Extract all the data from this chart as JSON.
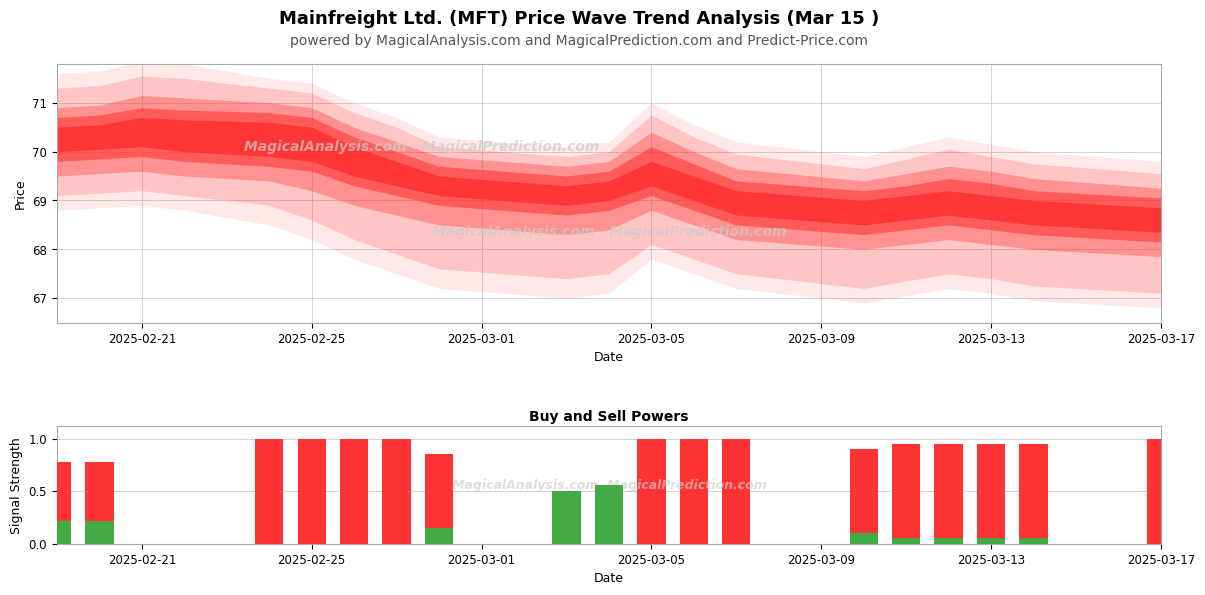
{
  "title": "Mainfreight Ltd. (MFT) Price Wave Trend Analysis (Mar 15 )",
  "subtitle": "powered by MagicalAnalysis.com and MagicalPrediction.com and Predict-Price.com",
  "title_fontsize": 13,
  "subtitle_fontsize": 10,
  "watermark1": "MagicalAnalysis.com - MagicalPrediction.com",
  "watermark2": "MagicalAnalysis.com   MagicalPrediction.com",
  "watermark3": "MagicalAnalysis.com  MagicalPrediction.com",
  "xlabel": "Date",
  "ylabel_top": "Price",
  "ylabel_bottom": "Signal Strength",
  "bottom_title": "Buy and Sell Powers",
  "price_ylim": [
    66.5,
    71.8
  ],
  "price_yticks": [
    67,
    68,
    69,
    70,
    71
  ],
  "bar_yticks": [
    0.0,
    0.5,
    1.0
  ],
  "background_color": "#ffffff",
  "sell_color": "#ff3333",
  "buy_color": "#44aa44",
  "grid_color": "#cccccc",
  "tick_dates": [
    "2025-02-21",
    "2025-02-25",
    "2025-03-01",
    "2025-03-05",
    "2025-03-09",
    "2025-03-13",
    "2025-03-17"
  ],
  "dates": [
    "2025-02-19",
    "2025-02-20",
    "2025-02-21",
    "2025-02-22",
    "2025-02-24",
    "2025-02-25",
    "2025-02-26",
    "2025-02-27",
    "2025-02-28",
    "2025-03-03",
    "2025-03-04",
    "2025-03-05",
    "2025-03-06",
    "2025-03-07",
    "2025-03-10",
    "2025-03-11",
    "2025-03-12",
    "2025-03-13",
    "2025-03-14",
    "2025-03-17"
  ],
  "bands": [
    {
      "upper": [
        70.5,
        70.55,
        70.7,
        70.65,
        70.6,
        70.5,
        70.1,
        69.8,
        69.5,
        69.3,
        69.4,
        69.8,
        69.5,
        69.2,
        69.0,
        69.1,
        69.2,
        69.1,
        69.0,
        68.85
      ],
      "lower": [
        70.0,
        70.05,
        70.1,
        70.0,
        69.9,
        69.8,
        69.5,
        69.3,
        69.1,
        68.9,
        69.0,
        69.3,
        69.0,
        68.7,
        68.5,
        68.6,
        68.7,
        68.6,
        68.5,
        68.35
      ],
      "color": "#ff2020",
      "alpha": 0.85
    },
    {
      "upper": [
        70.7,
        70.75,
        70.9,
        70.85,
        70.8,
        70.7,
        70.3,
        70.0,
        69.7,
        69.5,
        69.6,
        70.1,
        69.75,
        69.4,
        69.2,
        69.3,
        69.45,
        69.35,
        69.2,
        69.05
      ],
      "lower": [
        69.8,
        69.85,
        69.9,
        69.8,
        69.7,
        69.6,
        69.3,
        69.1,
        68.9,
        68.7,
        68.8,
        69.1,
        68.8,
        68.5,
        68.3,
        68.4,
        68.5,
        68.4,
        68.3,
        68.15
      ],
      "color": "#ff2020",
      "alpha": 0.55
    },
    {
      "upper": [
        70.9,
        70.95,
        71.15,
        71.1,
        71.0,
        70.9,
        70.5,
        70.2,
        69.9,
        69.7,
        69.8,
        70.4,
        70.0,
        69.65,
        69.4,
        69.55,
        69.7,
        69.6,
        69.45,
        69.25
      ],
      "lower": [
        69.5,
        69.55,
        69.6,
        69.5,
        69.4,
        69.2,
        68.9,
        68.7,
        68.5,
        68.3,
        68.4,
        68.8,
        68.5,
        68.2,
        68.0,
        68.1,
        68.2,
        68.1,
        68.0,
        67.85
      ],
      "color": "#ff2020",
      "alpha": 0.35
    },
    {
      "upper": [
        71.3,
        71.35,
        71.55,
        71.5,
        71.3,
        71.2,
        70.8,
        70.5,
        70.1,
        69.9,
        70.0,
        70.75,
        70.3,
        69.95,
        69.65,
        69.85,
        70.05,
        69.9,
        69.75,
        69.55
      ],
      "lower": [
        69.1,
        69.15,
        69.2,
        69.1,
        68.9,
        68.6,
        68.2,
        67.9,
        67.6,
        67.4,
        67.5,
        68.1,
        67.8,
        67.5,
        67.2,
        67.35,
        67.5,
        67.4,
        67.25,
        67.1
      ],
      "color": "#ff4444",
      "alpha": 0.22
    },
    {
      "upper": [
        71.6,
        71.65,
        71.85,
        71.8,
        71.5,
        71.4,
        71.0,
        70.7,
        70.3,
        70.1,
        70.2,
        71.0,
        70.55,
        70.2,
        69.9,
        70.1,
        70.3,
        70.15,
        70.0,
        69.8
      ],
      "lower": [
        68.8,
        68.85,
        68.9,
        68.8,
        68.5,
        68.2,
        67.8,
        67.5,
        67.2,
        67.0,
        67.1,
        67.8,
        67.5,
        67.2,
        66.9,
        67.05,
        67.2,
        67.1,
        66.95,
        66.8
      ],
      "color": "#ff6666",
      "alpha": 0.15
    }
  ],
  "bar_dates": [
    "2025-02-19",
    "2025-02-20",
    "2025-02-24",
    "2025-02-25",
    "2025-02-26",
    "2025-02-27",
    "2025-02-28",
    "2025-03-03",
    "2025-03-04",
    "2025-03-05",
    "2025-03-06",
    "2025-03-07",
    "2025-03-10",
    "2025-03-11",
    "2025-03-12",
    "2025-03-13",
    "2025-03-14",
    "2025-03-17"
  ],
  "sell_values": [
    0.78,
    0.78,
    1.0,
    1.0,
    1.0,
    1.0,
    0.85,
    0.5,
    0.44,
    1.0,
    1.0,
    1.0,
    0.9,
    0.95,
    0.95,
    0.95,
    0.95,
    1.0
  ],
  "buy_values": [
    0.22,
    0.22,
    0.0,
    0.0,
    0.0,
    0.0,
    0.15,
    0.5,
    0.56,
    0.0,
    0.0,
    0.0,
    0.1,
    0.05,
    0.05,
    0.05,
    0.05,
    0.0
  ]
}
